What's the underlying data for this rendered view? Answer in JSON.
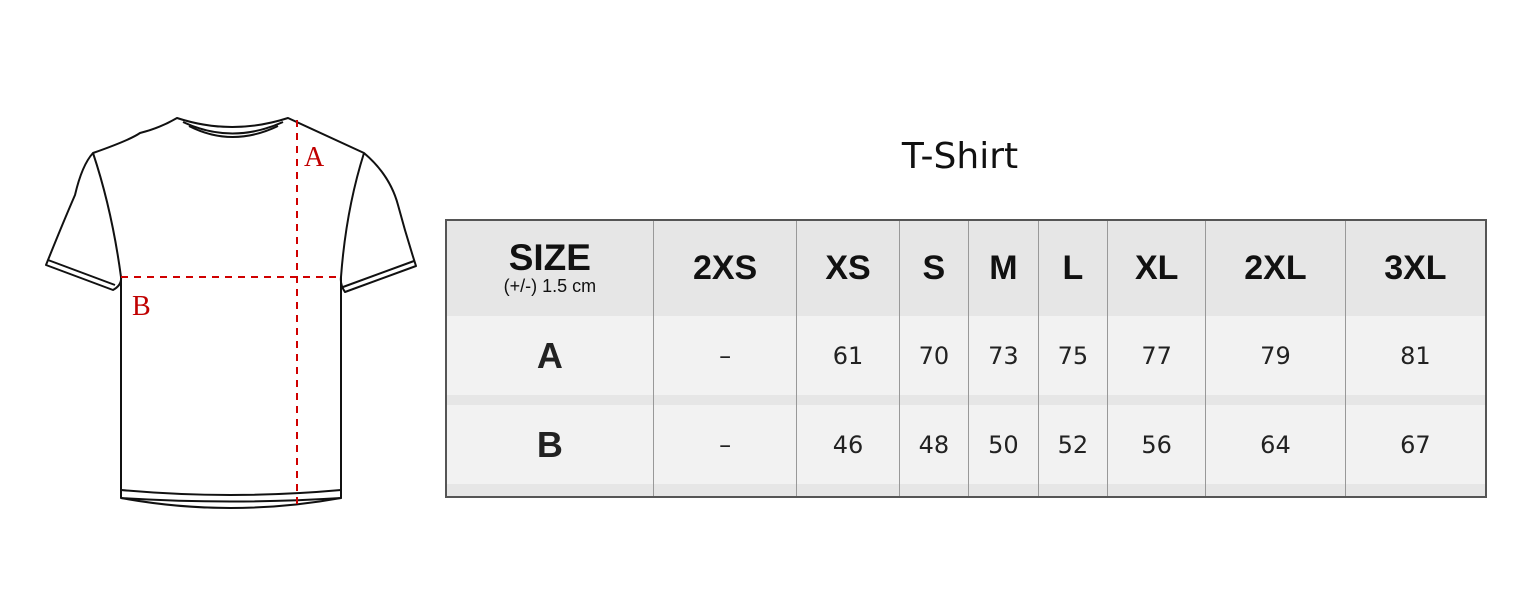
{
  "title": "T-Shirt",
  "diagram": {
    "measure_a_label": "A",
    "measure_b_label": "B",
    "accent_color": "#c00000"
  },
  "table": {
    "header_label": "SIZE",
    "tolerance": "(+/-) 1.5 cm",
    "sizes": [
      "2XS",
      "XS",
      "S",
      "M",
      "L",
      "XL",
      "2XL",
      "3XL"
    ],
    "rows": [
      {
        "label": "A",
        "values": [
          "–",
          "61",
          "70",
          "73",
          "75",
          "77",
          "79",
          "81"
        ]
      },
      {
        "label": "B",
        "values": [
          "–",
          "46",
          "48",
          "50",
          "52",
          "56",
          "64",
          "67"
        ]
      }
    ]
  }
}
